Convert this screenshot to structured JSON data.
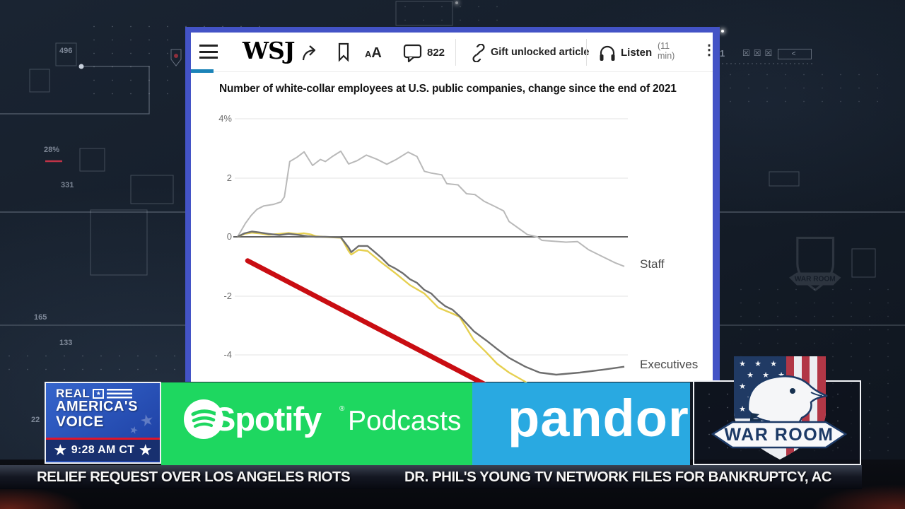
{
  "background": {
    "hud_labels": [
      {
        "text": "496"
      },
      {
        "text": "28%"
      },
      {
        "text": "331"
      },
      {
        "text": "165"
      },
      {
        "text": "133"
      },
      {
        "text": "1"
      },
      {
        "text": "22"
      }
    ],
    "close_row": {
      "boxes": "☒☒☒",
      "back": "<"
    }
  },
  "article": {
    "toolbar": {
      "brand": "WSJ",
      "comment_count": "822",
      "gift_label": "Gift unlocked article",
      "listen_label": "Listen",
      "read_time": "(11 min)"
    },
    "accent_border_color": "#4353c6",
    "progress_color": "#1b83b8"
  },
  "chart_data": {
    "type": "line",
    "title": "Number of white-collar employees at U.S. public companies, change since the end of 2021",
    "ylabel": "",
    "ylim": [
      -5.2,
      4
    ],
    "yticks": [
      "4%",
      "2",
      "0",
      "-2",
      "-4"
    ],
    "x_axis_labels_visible": false,
    "grid": true,
    "legend_position": "right-end-of-line",
    "series": [
      {
        "name": "Staff",
        "color": "#b9b9b9",
        "points": [
          [
            0,
            0
          ],
          [
            0.02,
            0.45
          ],
          [
            0.035,
            0.72
          ],
          [
            0.05,
            0.93
          ],
          [
            0.068,
            1.05
          ],
          [
            0.093,
            1.1
          ],
          [
            0.112,
            1.18
          ],
          [
            0.121,
            1.35
          ],
          [
            0.135,
            2.55
          ],
          [
            0.154,
            2.7
          ],
          [
            0.172,
            2.88
          ],
          [
            0.194,
            2.42
          ],
          [
            0.214,
            2.62
          ],
          [
            0.227,
            2.55
          ],
          [
            0.245,
            2.72
          ],
          [
            0.267,
            2.9
          ],
          [
            0.287,
            2.47
          ],
          [
            0.309,
            2.58
          ],
          [
            0.333,
            2.77
          ],
          [
            0.36,
            2.63
          ],
          [
            0.386,
            2.46
          ],
          [
            0.41,
            2.62
          ],
          [
            0.441,
            2.87
          ],
          [
            0.464,
            2.72
          ],
          [
            0.483,
            2.22
          ],
          [
            0.501,
            2.16
          ],
          [
            0.528,
            2.1
          ],
          [
            0.541,
            1.8
          ],
          [
            0.57,
            1.76
          ],
          [
            0.592,
            1.46
          ],
          [
            0.614,
            1.43
          ],
          [
            0.638,
            1.2
          ],
          [
            0.665,
            1.03
          ],
          [
            0.688,
            0.88
          ],
          [
            0.702,
            0.52
          ],
          [
            0.732,
            0.24
          ],
          [
            0.749,
            0.08
          ],
          [
            0.775,
            0
          ],
          [
            0.787,
            -0.12
          ],
          [
            0.849,
            -0.18
          ],
          [
            0.879,
            -0.16
          ],
          [
            0.908,
            -0.44
          ],
          [
            0.945,
            -0.68
          ],
          [
            0.976,
            -0.88
          ],
          [
            1,
            -1.0
          ]
        ]
      },
      {
        "name": "Executives",
        "color": "#6e6e6e",
        "points": [
          [
            0,
            0
          ],
          [
            0.018,
            0.12
          ],
          [
            0.037,
            0.18
          ],
          [
            0.055,
            0.15
          ],
          [
            0.08,
            0.1
          ],
          [
            0.108,
            0.06
          ],
          [
            0.132,
            0.1
          ],
          [
            0.154,
            0.07
          ],
          [
            0.181,
            0.02
          ],
          [
            0.203,
            0
          ],
          [
            0.227,
            0
          ],
          [
            0.267,
            -0.02
          ],
          [
            0.269,
            -0.05
          ],
          [
            0.287,
            -0.36
          ],
          [
            0.294,
            -0.52
          ],
          [
            0.313,
            -0.31
          ],
          [
            0.336,
            -0.31
          ],
          [
            0.355,
            -0.52
          ],
          [
            0.373,
            -0.72
          ],
          [
            0.391,
            -0.96
          ],
          [
            0.409,
            -1.08
          ],
          [
            0.428,
            -1.24
          ],
          [
            0.446,
            -1.44
          ],
          [
            0.464,
            -1.56
          ],
          [
            0.483,
            -1.8
          ],
          [
            0.501,
            -1.92
          ],
          [
            0.519,
            -2.16
          ],
          [
            0.537,
            -2.35
          ],
          [
            0.556,
            -2.47
          ],
          [
            0.579,
            -2.75
          ],
          [
            0.611,
            -3.2
          ],
          [
            0.642,
            -3.5
          ],
          [
            0.671,
            -3.8
          ],
          [
            0.702,
            -4.1
          ],
          [
            0.744,
            -4.4
          ],
          [
            0.781,
            -4.6
          ],
          [
            0.824,
            -4.67
          ],
          [
            0.885,
            -4.6
          ],
          [
            0.945,
            -4.5
          ],
          [
            1,
            -4.4
          ]
        ]
      },
      {
        "name": "",
        "color": "#e6d050",
        "points": [
          [
            0,
            0
          ],
          [
            0.018,
            0.1
          ],
          [
            0.037,
            0.14
          ],
          [
            0.055,
            0.12
          ],
          [
            0.08,
            0.07
          ],
          [
            0.108,
            0.1
          ],
          [
            0.132,
            0.13
          ],
          [
            0.154,
            0.1
          ],
          [
            0.172,
            0.12
          ],
          [
            0.19,
            0.08
          ],
          [
            0.203,
            0.02
          ],
          [
            0.22,
            0
          ],
          [
            0.267,
            -0.03
          ],
          [
            0.272,
            -0.12
          ],
          [
            0.287,
            -0.48
          ],
          [
            0.294,
            -0.6
          ],
          [
            0.313,
            -0.44
          ],
          [
            0.336,
            -0.48
          ],
          [
            0.373,
            -0.88
          ],
          [
            0.409,
            -1.24
          ],
          [
            0.446,
            -1.64
          ],
          [
            0.483,
            -1.92
          ],
          [
            0.519,
            -2.4
          ],
          [
            0.556,
            -2.6
          ],
          [
            0.574,
            -2.71
          ],
          [
            0.611,
            -3.5
          ],
          [
            0.642,
            -3.9
          ],
          [
            0.671,
            -4.3
          ],
          [
            0.702,
            -4.6
          ],
          [
            0.744,
            -4.91
          ],
          [
            0.76,
            -5.1
          ],
          [
            0.78,
            -5.35
          ]
        ]
      }
    ],
    "annotation_line": {
      "color": "#c90d12",
      "from": [
        0.026,
        -0.81
      ],
      "to": [
        0.647,
        -5.05
      ]
    }
  },
  "banners": {
    "rav": {
      "line1": "REAL",
      "line2": "AMERICA'S",
      "line3": "VOICE",
      "time": "9:28 AM CT",
      "star": "★",
      "top_color": "#2a55bc",
      "bar_color": "#18306f",
      "accent_red": "#e0162b"
    },
    "spotify": {
      "wordmark": "Spotify",
      "reg": "®",
      "suffix": "Podcasts",
      "bg": "#1ed760"
    },
    "pandora": {
      "wordmark": "pandora",
      "bg": "#29a9e1"
    },
    "warroom": {
      "title": "WAR ROOM",
      "navy": "#1d3a66",
      "red": "#b23746"
    }
  },
  "ticker": {
    "left": "RELIEF REQUEST OVER LOS ANGELES RIOTS",
    "right": "DR. PHIL'S YOUNG TV NETWORK FILES FOR BANKRUPTCY, AC"
  }
}
